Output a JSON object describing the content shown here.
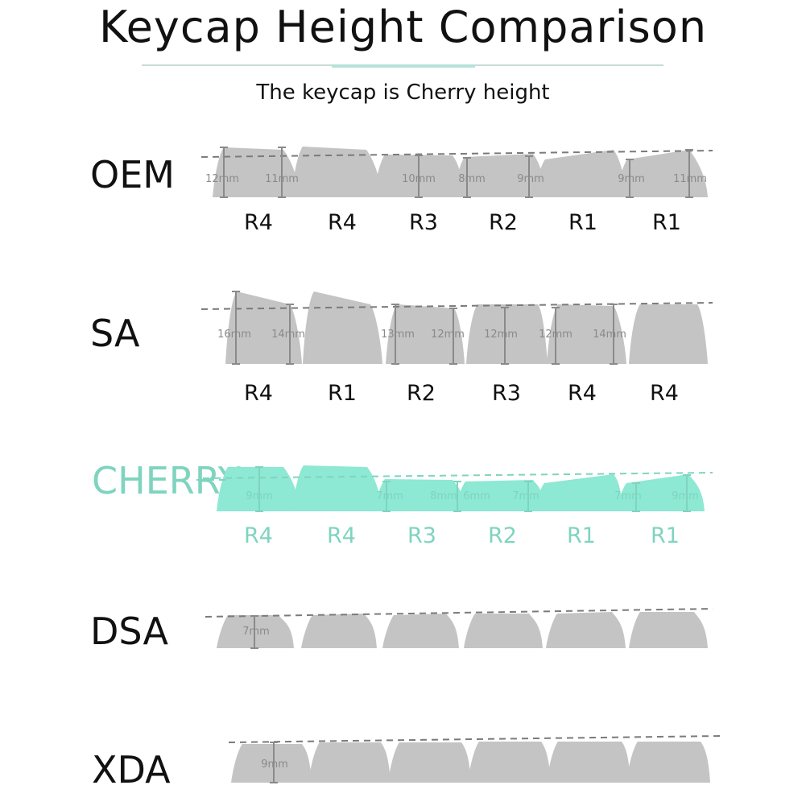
{
  "title": "Keycap Height Comparison",
  "subtitle": "The keycap is Cherry height",
  "colors": {
    "grey_cap": "#c4c4c4",
    "cherry_cap": "#8de8d4",
    "cherry_text": "#7fd4bf",
    "text": "#111111",
    "dashed_line": "#7a7a7a",
    "measure_line": "#8a8a8a"
  },
  "profiles": [
    {
      "name": "OEM",
      "highlight": false,
      "rows": [
        "R4",
        "R4",
        "R3",
        "R2",
        "R1",
        "R1"
      ],
      "measurements": [
        "12mm",
        "11mm",
        "10mm",
        "8mm",
        "9mm",
        "9mm",
        "11mm"
      ]
    },
    {
      "name": "SA",
      "highlight": false,
      "rows": [
        "R4",
        "R1",
        "R2",
        "R3",
        "R4",
        "R4"
      ],
      "measurements": [
        "16mm",
        "14mm",
        "13mm",
        "12mm",
        "12mm",
        "12mm",
        "14mm"
      ]
    },
    {
      "name": "CHERRY",
      "highlight": true,
      "rows": [
        "R4",
        "R4",
        "R3",
        "R2",
        "R1",
        "R1"
      ],
      "measurements": [
        "9mm",
        "7mm",
        "8mm",
        "6mm",
        "7mm",
        "7mm",
        "9mm"
      ]
    },
    {
      "name": "DSA",
      "highlight": false,
      "rows": [],
      "measurements": [
        "7mm"
      ]
    },
    {
      "name": "XDA",
      "highlight": false,
      "rows": [],
      "measurements": [
        "9mm"
      ]
    }
  ]
}
